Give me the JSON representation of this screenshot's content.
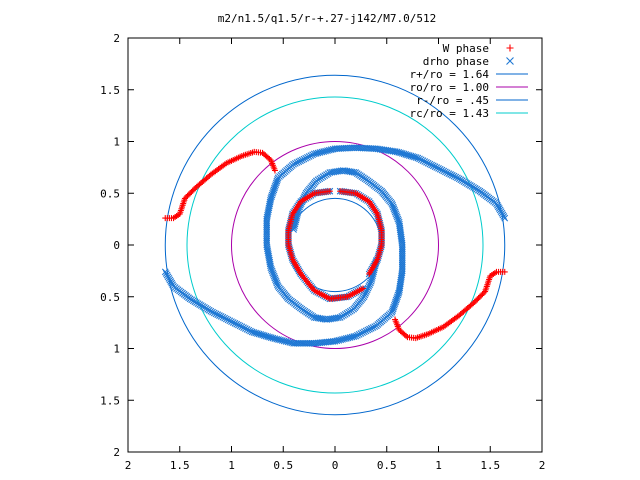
{
  "chart_data": {
    "type": "scatter",
    "title": "m2/n1.5/q1.5/r-+.27-j142/M7.0/512",
    "xlim": [
      -2,
      2
    ],
    "ylim": [
      -2,
      2
    ],
    "x_tick_labels": [
      "2",
      "1.5",
      "1",
      "0.5",
      "0",
      "0.5",
      "1",
      "1.5",
      "2"
    ],
    "y_tick_labels": [
      "2",
      "1.5",
      "1",
      "0.5",
      "0",
      "0.5",
      "1",
      "1.5",
      "2"
    ],
    "grid": false,
    "legend_position": "top-right",
    "series": [
      {
        "name": "W phase",
        "kind": "points",
        "marker": "+",
        "color": "#ff0000",
        "paths": [
          [
            [
              -1.64,
              0.26
            ],
            [
              -1.56,
              0.26
            ],
            [
              -1.5,
              0.3
            ],
            [
              -1.45,
              0.45
            ],
            [
              -1.35,
              0.55
            ],
            [
              -1.2,
              0.68
            ],
            [
              -1.05,
              0.79
            ],
            [
              -0.9,
              0.86
            ],
            [
              -0.78,
              0.9
            ],
            [
              -0.7,
              0.89
            ],
            [
              -0.62,
              0.82
            ],
            [
              -0.58,
              0.72
            ]
          ],
          [
            [
              1.64,
              -0.26
            ],
            [
              1.56,
              -0.26
            ],
            [
              1.5,
              -0.3
            ],
            [
              1.45,
              -0.45
            ],
            [
              1.35,
              -0.55
            ],
            [
              1.2,
              -0.68
            ],
            [
              1.05,
              -0.79
            ],
            [
              0.9,
              -0.86
            ],
            [
              0.78,
              -0.9
            ],
            [
              0.7,
              -0.89
            ],
            [
              0.62,
              -0.82
            ],
            [
              0.58,
              -0.72
            ]
          ],
          [
            [
              -0.05,
              0.52
            ],
            [
              -0.2,
              0.5
            ],
            [
              -0.33,
              0.42
            ],
            [
              -0.41,
              0.3
            ],
            [
              -0.45,
              0.14
            ],
            [
              -0.45,
              0.0
            ],
            [
              -0.41,
              -0.14
            ],
            [
              -0.33,
              -0.28
            ],
            [
              -0.2,
              -0.44
            ],
            [
              -0.05,
              -0.52
            ],
            [
              0.12,
              -0.5
            ],
            [
              0.27,
              -0.42
            ]
          ],
          [
            [
              0.05,
              0.52
            ],
            [
              0.2,
              0.5
            ],
            [
              0.33,
              0.42
            ],
            [
              0.41,
              0.3
            ],
            [
              0.45,
              0.14
            ],
            [
              0.45,
              0.0
            ],
            [
              0.41,
              -0.14
            ],
            [
              0.33,
              -0.28
            ]
          ]
        ]
      },
      {
        "name": "drho phase",
        "kind": "points",
        "marker": "x",
        "color": "#1f78d4",
        "paths": [
          [
            [
              -1.64,
              -0.26
            ],
            [
              -1.56,
              -0.4
            ],
            [
              -1.4,
              -0.52
            ],
            [
              -1.2,
              -0.64
            ],
            [
              -1.0,
              -0.74
            ],
            [
              -0.8,
              -0.84
            ],
            [
              -0.6,
              -0.9
            ],
            [
              -0.4,
              -0.95
            ],
            [
              -0.2,
              -0.95
            ],
            [
              0.0,
              -0.93
            ],
            [
              0.2,
              -0.88
            ],
            [
              0.4,
              -0.78
            ],
            [
              0.55,
              -0.65
            ],
            [
              0.62,
              -0.45
            ],
            [
              0.65,
              -0.25
            ],
            [
              0.65,
              0.0
            ],
            [
              0.62,
              0.22
            ],
            [
              0.55,
              0.4
            ],
            [
              0.45,
              0.52
            ],
            [
              0.32,
              0.62
            ],
            [
              0.2,
              0.7
            ],
            [
              0.08,
              0.72
            ],
            [
              -0.05,
              0.7
            ],
            [
              -0.18,
              0.62
            ],
            [
              -0.28,
              0.5
            ],
            [
              -0.35,
              0.35
            ],
            [
              -0.4,
              0.15
            ]
          ],
          [
            [
              1.64,
              0.26
            ],
            [
              1.56,
              0.4
            ],
            [
              1.4,
              0.52
            ],
            [
              1.2,
              0.64
            ],
            [
              1.0,
              0.74
            ],
            [
              0.8,
              0.84
            ],
            [
              0.6,
              0.9
            ],
            [
              0.4,
              0.93
            ],
            [
              0.2,
              0.94
            ],
            [
              0.0,
              0.93
            ],
            [
              -0.2,
              0.88
            ],
            [
              -0.4,
              0.78
            ],
            [
              -0.55,
              0.65
            ],
            [
              -0.62,
              0.45
            ],
            [
              -0.66,
              0.25
            ],
            [
              -0.66,
              0.0
            ],
            [
              -0.62,
              -0.22
            ],
            [
              -0.55,
              -0.4
            ],
            [
              -0.45,
              -0.52
            ],
            [
              -0.32,
              -0.62
            ],
            [
              -0.2,
              -0.7
            ],
            [
              -0.08,
              -0.72
            ],
            [
              0.05,
              -0.7
            ],
            [
              0.18,
              -0.62
            ],
            [
              0.28,
              -0.5
            ],
            [
              0.35,
              -0.35
            ],
            [
              0.4,
              -0.15
            ]
          ],
          [
            [
              -0.05,
              0.52
            ],
            [
              -0.2,
              0.5
            ],
            [
              -0.33,
              0.42
            ],
            [
              -0.41,
              0.3
            ],
            [
              -0.45,
              0.14
            ],
            [
              -0.45,
              0.0
            ],
            [
              -0.41,
              -0.14
            ],
            [
              -0.33,
              -0.28
            ],
            [
              -0.2,
              -0.44
            ],
            [
              -0.05,
              -0.52
            ],
            [
              0.12,
              -0.5
            ],
            [
              0.27,
              -0.42
            ]
          ],
          [
            [
              0.05,
              0.52
            ],
            [
              0.2,
              0.5
            ],
            [
              0.33,
              0.42
            ],
            [
              0.41,
              0.3
            ],
            [
              0.45,
              0.14
            ],
            [
              0.45,
              0.0
            ],
            [
              0.41,
              -0.14
            ],
            [
              0.33,
              -0.28
            ]
          ]
        ]
      },
      {
        "name": "r+/ro = 1.64",
        "kind": "circle",
        "radius": 1.64,
        "color": "#0066cc"
      },
      {
        "name": "ro/ro = 1.00",
        "kind": "circle",
        "radius": 1.0,
        "color": "#aa00aa"
      },
      {
        "name": "r-/ro = .45",
        "kind": "circle",
        "radius": 0.45,
        "color": "#0066cc"
      },
      {
        "name": "rc/ro = 1.43",
        "kind": "circle",
        "radius": 1.43,
        "color": "#00cccc"
      }
    ]
  }
}
